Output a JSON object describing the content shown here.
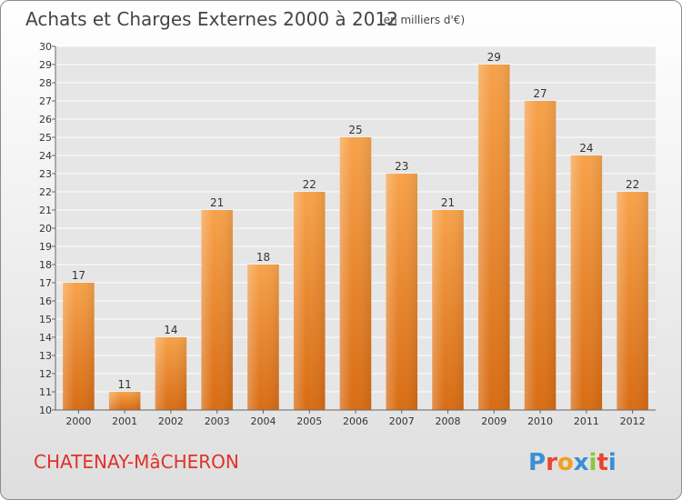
{
  "chart_data": {
    "type": "bar",
    "title": "Achats et Charges Externes 2000 à 2012",
    "subtitle": "(en milliers d'€)",
    "categories": [
      "2000",
      "2001",
      "2002",
      "2003",
      "2004",
      "2005",
      "2006",
      "2007",
      "2008",
      "2009",
      "2010",
      "2011",
      "2012"
    ],
    "values": [
      17,
      11,
      14,
      21,
      18,
      22,
      25,
      23,
      21,
      29,
      27,
      24,
      22
    ],
    "ylim": [
      10,
      30
    ],
    "yticks": [
      10,
      11,
      12,
      13,
      14,
      15,
      16,
      17,
      18,
      19,
      20,
      21,
      22,
      23,
      24,
      25,
      26,
      27,
      28,
      29,
      30
    ],
    "grid": true,
    "bar_color": "#f08a2c",
    "footer_label": "CHATENAY-MâCHERON",
    "logo_text": "Proxiti",
    "logo_colors": [
      "#3a8fd6",
      "#e8452c",
      "#f0a020",
      "#3a8fd6",
      "#8cc63f",
      "#e8452c",
      "#3a8fd6"
    ]
  }
}
